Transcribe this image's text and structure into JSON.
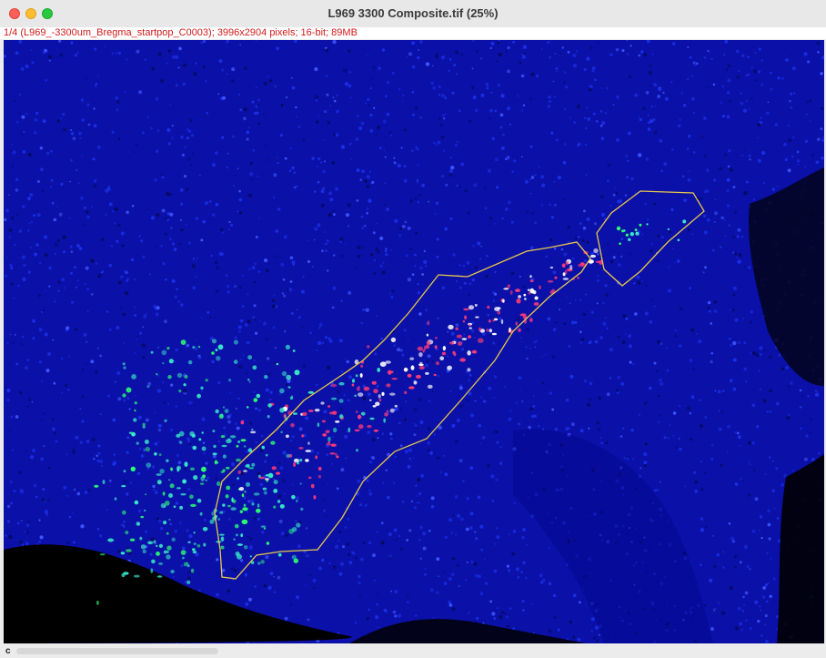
{
  "window": {
    "title": "L969 3300 Composite.tif (25%)",
    "info": "1/4 (L969_-3300um_Bregma_startpop_C0003); 3996x2904 pixels; 16-bit; 89MB"
  },
  "image": {
    "background_color": "#000000",
    "nuclei_color": "#1c2fe6",
    "cell_colors": [
      "#38e8c8",
      "#2cff70",
      "#ff3a78",
      "#ffffff"
    ],
    "roi_color": "#e8c84a"
  },
  "bottom": {
    "channel_label": "c"
  }
}
